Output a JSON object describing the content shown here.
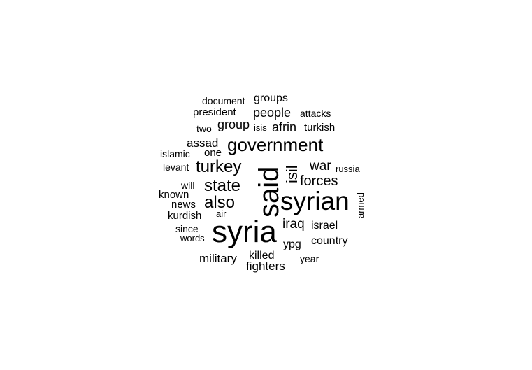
{
  "chart_data": {
    "type": "wordcloud",
    "words": [
      {
        "text": "syria",
        "weight": 100
      },
      {
        "text": "said",
        "weight": 92
      },
      {
        "text": "syrian",
        "weight": 75
      },
      {
        "text": "government",
        "weight": 55
      },
      {
        "text": "turkey",
        "weight": 48
      },
      {
        "text": "state",
        "weight": 48
      },
      {
        "text": "also",
        "weight": 48
      },
      {
        "text": "isil",
        "weight": 40
      },
      {
        "text": "forces",
        "weight": 40
      },
      {
        "text": "iraq",
        "weight": 38
      },
      {
        "text": "war",
        "weight": 36
      },
      {
        "text": "people",
        "weight": 35
      },
      {
        "text": "afrin",
        "weight": 34
      },
      {
        "text": "group",
        "weight": 34
      },
      {
        "text": "assad",
        "weight": 33
      },
      {
        "text": "military",
        "weight": 33
      },
      {
        "text": "fighters",
        "weight": 33
      },
      {
        "text": "israel",
        "weight": 31
      },
      {
        "text": "groups",
        "weight": 31
      },
      {
        "text": "president",
        "weight": 31
      },
      {
        "text": "turkish",
        "weight": 31
      },
      {
        "text": "killed",
        "weight": 30
      },
      {
        "text": "ypg",
        "weight": 30
      },
      {
        "text": "country",
        "weight": 30
      },
      {
        "text": "kurdish",
        "weight": 28
      },
      {
        "text": "news",
        "weight": 28
      },
      {
        "text": "known",
        "weight": 27
      },
      {
        "text": "since",
        "weight": 27
      },
      {
        "text": "one",
        "weight": 27
      },
      {
        "text": "document",
        "weight": 26
      },
      {
        "text": "will",
        "weight": 26
      },
      {
        "text": "attacks",
        "weight": 26
      },
      {
        "text": "year",
        "weight": 26
      },
      {
        "text": "two",
        "weight": 25
      },
      {
        "text": "isis",
        "weight": 25
      },
      {
        "text": "islamic",
        "weight": 25
      },
      {
        "text": "levant",
        "weight": 25
      },
      {
        "text": "words",
        "weight": 25
      },
      {
        "text": "russia",
        "weight": 25
      },
      {
        "text": "air",
        "weight": 25
      },
      {
        "text": "armed",
        "weight": 24
      }
    ]
  }
}
